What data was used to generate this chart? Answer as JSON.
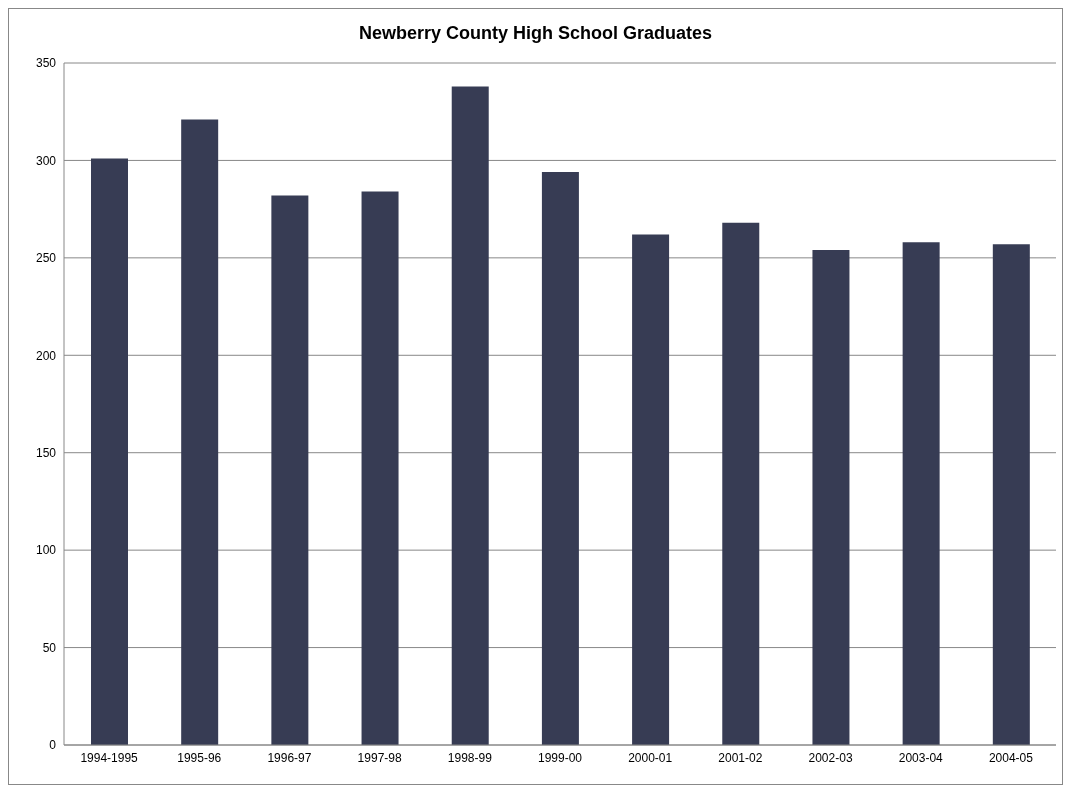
{
  "chart_data": {
    "type": "bar",
    "title": "Newberry County High School Graduates",
    "categories": [
      "1994-1995",
      "1995-96",
      "1996-97",
      "1997-98",
      "1998-99",
      "1999-00",
      "2000-01",
      "2001-02",
      "2002-03",
      "2003-04",
      "2004-05"
    ],
    "values": [
      301,
      321,
      282,
      284,
      338,
      294,
      262,
      268,
      254,
      258,
      257
    ],
    "color": "#373c54",
    "ylim": [
      0,
      350
    ],
    "yticks": [
      0,
      50,
      100,
      150,
      200,
      250,
      300,
      350
    ],
    "grid": "y",
    "legend": false
  }
}
